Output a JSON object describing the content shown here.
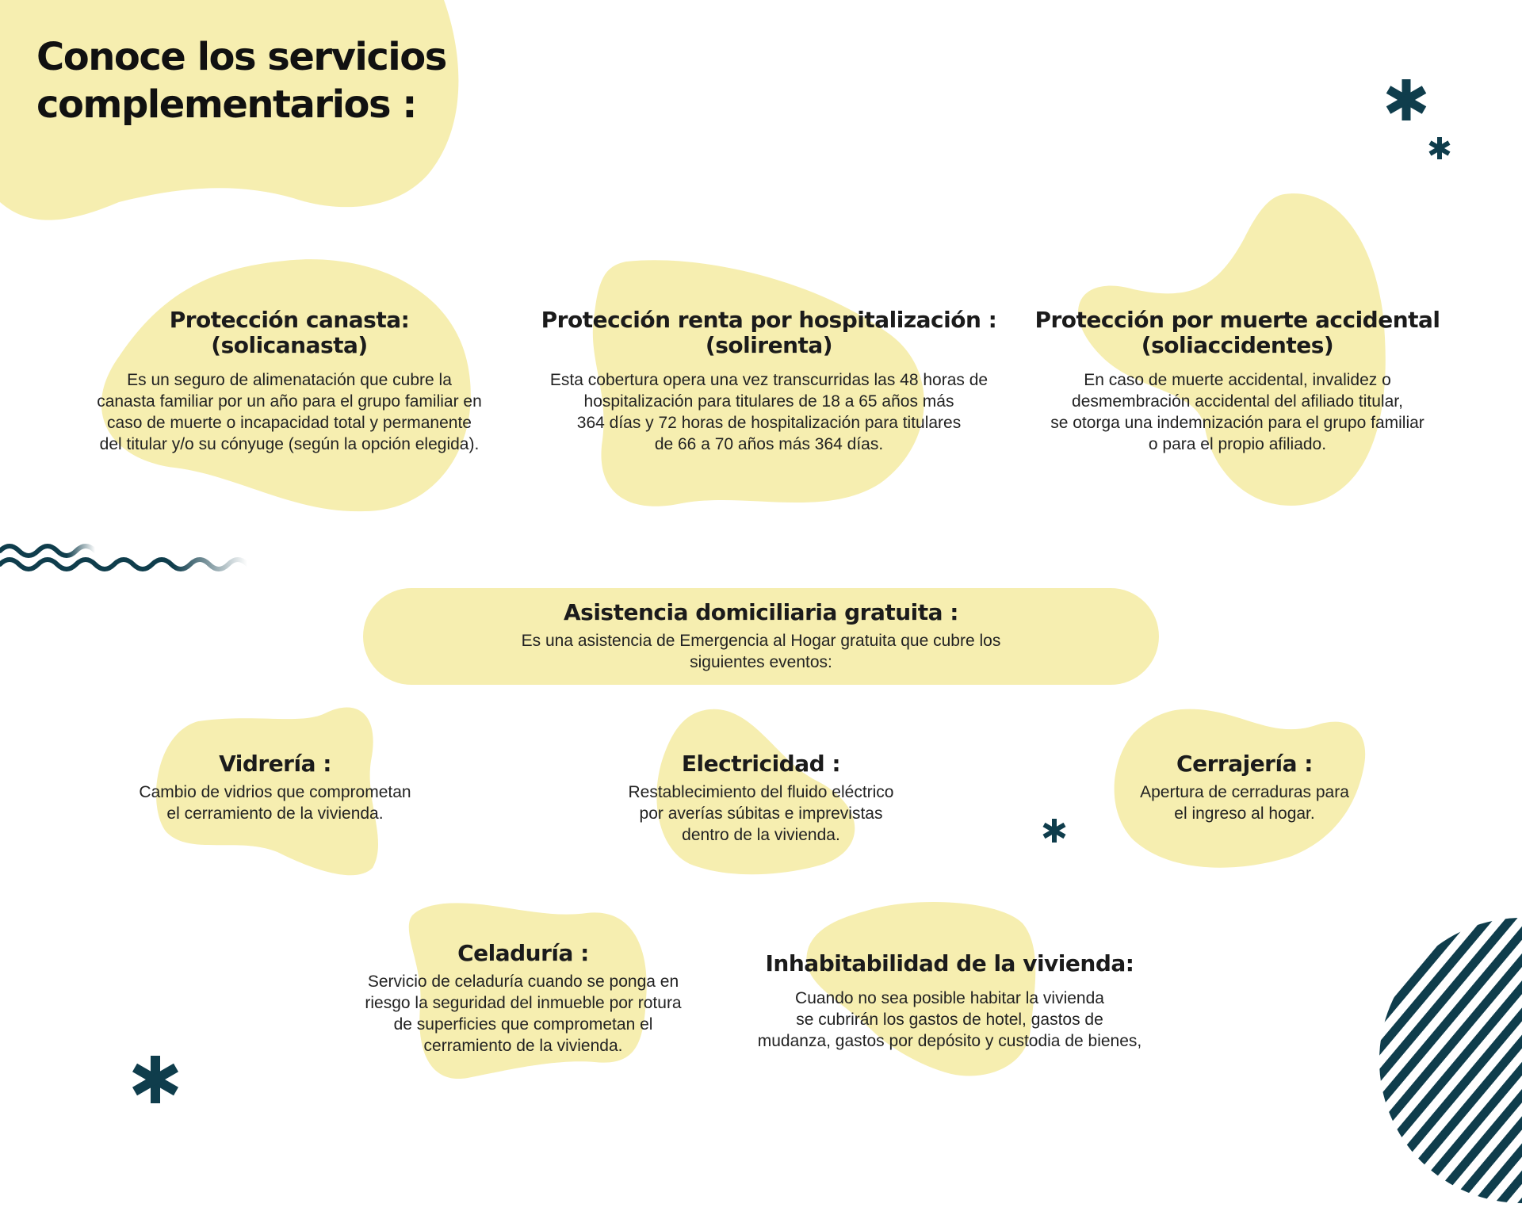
{
  "title": {
    "line1": "Conoce los servicios",
    "line2": "complementarios :"
  },
  "services": {
    "canasta": {
      "heading_line1": "Protección canasta:",
      "heading_line2": "(solicanasta)",
      "lines": [
        "Es un seguro de alimenatación que cubre la",
        "canasta familiar por un año para el grupo familiar en",
        "caso de muerte o incapacidad total y permanente",
        "del titular y/o su cónyuge (según la opción elegida)."
      ]
    },
    "renta": {
      "heading_line1": "Protección renta por hospitalización :",
      "heading_line2": "(solirenta)",
      "lines": [
        "Esta cobertura opera una vez transcurridas las 48 horas de",
        "hospitalización para titulares de 18 a 65 años más",
        "364 días y 72 horas de hospitalización para titulares",
        "de 66 a 70 años más 364 días."
      ]
    },
    "muerte": {
      "heading_line1": "Protección por muerte accidental",
      "heading_line2": "(soliaccidentes)",
      "lines": [
        "En caso de muerte accidental, invalidez o",
        "desmembración accidental del afiliado titular,",
        "se otorga una indemnización para el grupo familiar",
        "o para el propio afiliado."
      ]
    }
  },
  "asistencia": {
    "heading": "Asistencia domiciliaria gratuita :",
    "lines": [
      "Es una asistencia de Emergencia al Hogar gratuita que cubre los",
      "siguientes eventos:"
    ]
  },
  "events": {
    "vidreria": {
      "heading": "Vidrería :",
      "lines": [
        "Cambio de vidrios que comprometan",
        "el cerramiento de la vivienda."
      ]
    },
    "electricidad": {
      "heading": "Electricidad :",
      "lines": [
        "Restablecimiento del fluido eléctrico",
        "por averías súbitas e imprevistas",
        "dentro de la vivienda."
      ]
    },
    "cerrajeria": {
      "heading": "Cerrajería :",
      "lines": [
        "Apertura de cerraduras para",
        "el ingreso al hogar."
      ]
    },
    "celaduria": {
      "heading": "Celaduría :",
      "lines": [
        "Servicio de celaduría cuando se ponga en",
        "riesgo la seguridad del inmueble por rotura",
        "de superficies que comprometan el",
        "cerramiento de la vivienda."
      ]
    },
    "inhabitabilidad": {
      "heading": "Inhabitabilidad de la vivienda:",
      "lines": [
        "Cuando no sea posible habitar la vivienda",
        "se cubrirán los gastos de hotel, gastos de",
        "mudanza, gastos por depósito y custodia de bienes,"
      ]
    }
  },
  "colors": {
    "blob": "#f6eeb0",
    "accent": "#0f3d4c",
    "text": "#1b1b1b"
  },
  "icons": [
    "asterisk-icon",
    "wave-decoration",
    "striped-circle-decoration"
  ]
}
